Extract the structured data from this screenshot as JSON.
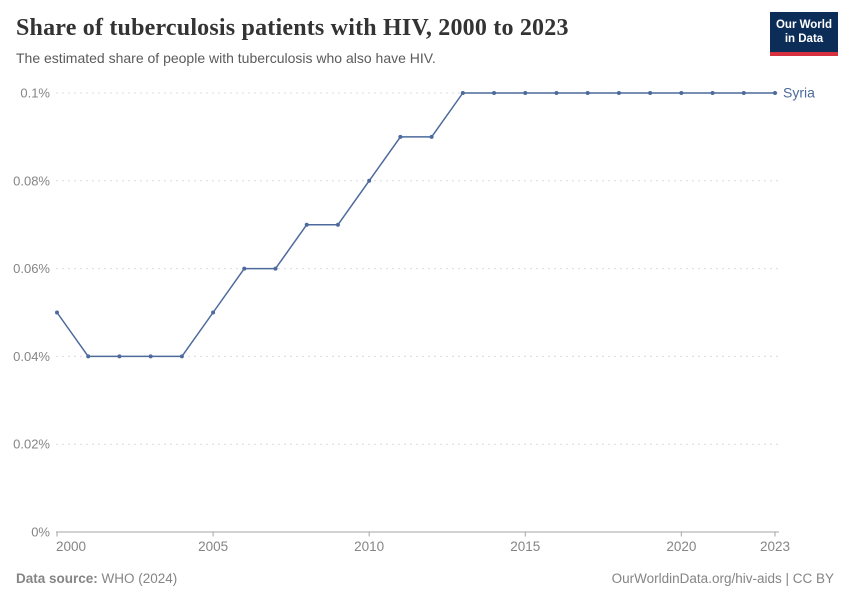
{
  "header": {
    "title": "Share of tuberculosis patients with HIV, 2000 to 2023",
    "subtitle": "The estimated share of people with tuberculosis who also have HIV.",
    "logo": {
      "line1": "Our World",
      "line2": "in Data",
      "bg_color": "#0d2d59",
      "accent_color": "#d7303f"
    }
  },
  "chart_data": {
    "type": "line",
    "title": "Share of tuberculosis patients with HIV, 2000 to 2023",
    "x": [
      2000,
      2001,
      2002,
      2003,
      2004,
      2005,
      2006,
      2007,
      2008,
      2009,
      2010,
      2011,
      2012,
      2013,
      2014,
      2015,
      2016,
      2017,
      2018,
      2019,
      2020,
      2021,
      2022,
      2023
    ],
    "series": [
      {
        "name": "Syria",
        "color": "#4c6a9c",
        "values": [
          0.05,
          0.04,
          0.04,
          0.04,
          0.04,
          0.05,
          0.06,
          0.06,
          0.07,
          0.07,
          0.08,
          0.09,
          0.09,
          0.1,
          0.1,
          0.1,
          0.1,
          0.1,
          0.1,
          0.1,
          0.1,
          0.1,
          0.1,
          0.1
        ]
      }
    ],
    "xlabel": "",
    "ylabel": "",
    "xlim": [
      2000,
      2023
    ],
    "ylim": [
      0,
      0.1
    ],
    "y_ticks": [
      {
        "value": 0,
        "label": "0%"
      },
      {
        "value": 0.02,
        "label": "0.02%"
      },
      {
        "value": 0.04,
        "label": "0.04%"
      },
      {
        "value": 0.06,
        "label": "0.06%"
      },
      {
        "value": 0.08,
        "label": "0.08%"
      },
      {
        "value": 0.1,
        "label": "0.1%"
      }
    ],
    "x_ticks": [
      2000,
      2005,
      2010,
      2015,
      2020,
      2023
    ],
    "grid": "horizontal-dashed",
    "legend_position": "end-of-line-label",
    "grid_color": "#dcdcdc",
    "axis_color": "#a5a5a5",
    "tick_label_color": "#858585"
  },
  "footer": {
    "source_label": "Data source:",
    "source_value": " WHO (2024)",
    "credit": "OurWorldinData.org/hiv-aids | CC BY"
  }
}
